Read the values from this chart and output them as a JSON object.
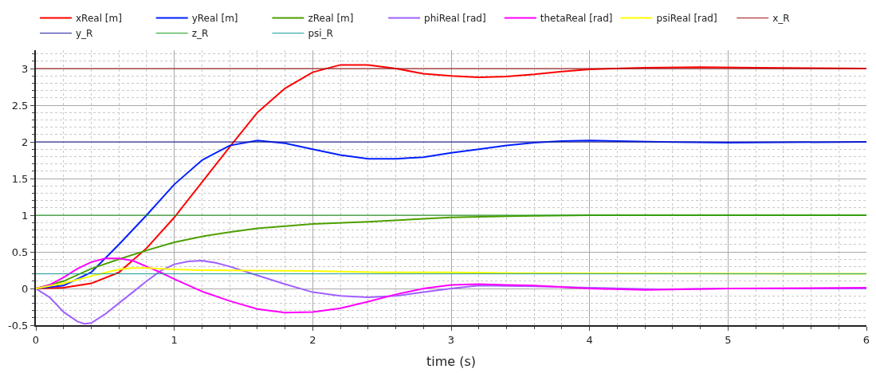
{
  "chart_data": {
    "type": "line",
    "xlabel": "time (s)",
    "xlim": [
      0,
      6
    ],
    "ylim": [
      -0.5,
      3.25
    ],
    "xticks": [
      0,
      1,
      2,
      3,
      4,
      5,
      6
    ],
    "yticks": [
      -0.5,
      0,
      0.5,
      1,
      1.5,
      2,
      2.5,
      3
    ],
    "grid": true,
    "legend": "top",
    "marker": "none",
    "line_style": "solid",
    "series": [
      {
        "name": "xReal [m]",
        "color": "#ff0000",
        "x": [
          0,
          0.2,
          0.4,
          0.6,
          0.8,
          1.0,
          1.2,
          1.4,
          1.6,
          1.8,
          2.0,
          2.2,
          2.4,
          2.6,
          2.8,
          3.0,
          3.2,
          3.4,
          3.6,
          3.8,
          4.0,
          4.4,
          4.8,
          5.2,
          6
        ],
        "values": [
          0,
          0.01,
          0.07,
          0.22,
          0.55,
          0.97,
          1.45,
          1.93,
          2.4,
          2.73,
          2.95,
          3.05,
          3.05,
          3.0,
          2.93,
          2.9,
          2.88,
          2.89,
          2.92,
          2.96,
          2.99,
          3.01,
          3.02,
          3.01,
          3.0
        ]
      },
      {
        "name": "yReal [m]",
        "color": "#0020ff",
        "x": [
          0,
          0.2,
          0.4,
          0.6,
          0.8,
          1.0,
          1.2,
          1.4,
          1.6,
          1.8,
          2.0,
          2.2,
          2.4,
          2.6,
          2.8,
          3.0,
          3.2,
          3.4,
          3.6,
          3.8,
          4.0,
          4.5,
          5,
          6
        ],
        "values": [
          0,
          0.04,
          0.22,
          0.6,
          1.0,
          1.42,
          1.75,
          1.95,
          2.02,
          1.98,
          1.9,
          1.82,
          1.77,
          1.77,
          1.79,
          1.85,
          1.9,
          1.95,
          1.99,
          2.01,
          2.02,
          2.0,
          1.99,
          2.0
        ]
      },
      {
        "name": "zReal [m]",
        "color": "#4ca000",
        "x": [
          0,
          0.2,
          0.4,
          0.6,
          0.8,
          1.0,
          1.2,
          1.4,
          1.6,
          1.8,
          2.0,
          2.4,
          2.8,
          3.0,
          3.5,
          4,
          6
        ],
        "values": [
          0,
          0.1,
          0.27,
          0.4,
          0.52,
          0.63,
          0.71,
          0.77,
          0.82,
          0.85,
          0.88,
          0.91,
          0.95,
          0.97,
          0.99,
          1.0,
          1.0
        ]
      },
      {
        "name": "phiReal [rad]",
        "color": "#a060ff",
        "x": [
          0,
          0.1,
          0.2,
          0.3,
          0.35,
          0.4,
          0.5,
          0.6,
          0.7,
          0.8,
          0.9,
          1.0,
          1.1,
          1.2,
          1.3,
          1.4,
          1.6,
          1.8,
          2.0,
          2.2,
          2.4,
          2.6,
          2.8,
          3.0,
          3.2,
          3.6,
          4.0,
          4.5,
          5,
          6
        ],
        "values": [
          0,
          -0.12,
          -0.32,
          -0.45,
          -0.48,
          -0.47,
          -0.35,
          -0.2,
          -0.05,
          0.1,
          0.24,
          0.33,
          0.37,
          0.38,
          0.35,
          0.3,
          0.18,
          0.06,
          -0.05,
          -0.1,
          -0.12,
          -0.1,
          -0.05,
          0.0,
          0.04,
          0.03,
          0.01,
          -0.01,
          0.0,
          0.0
        ]
      },
      {
        "name": "thetaReal [rad]",
        "color": "#ff00ff",
        "x": [
          0,
          0.1,
          0.2,
          0.3,
          0.4,
          0.5,
          0.6,
          0.7,
          0.8,
          0.9,
          1.0,
          1.2,
          1.4,
          1.6,
          1.8,
          2.0,
          2.2,
          2.4,
          2.6,
          2.8,
          3.0,
          3.2,
          3.4,
          3.6,
          4.0,
          4.4,
          5,
          6
        ],
        "values": [
          0,
          0.05,
          0.15,
          0.27,
          0.36,
          0.41,
          0.41,
          0.38,
          0.3,
          0.22,
          0.13,
          -0.04,
          -0.17,
          -0.28,
          -0.33,
          -0.32,
          -0.27,
          -0.18,
          -0.08,
          0.0,
          0.05,
          0.06,
          0.05,
          0.04,
          0.0,
          -0.02,
          0.0,
          0.01
        ]
      },
      {
        "name": "psiReal [rad]",
        "color": "#ffff00",
        "x": [
          0,
          0.2,
          0.4,
          0.6,
          0.7,
          0.8,
          1.0,
          1.2,
          2.0,
          2.5,
          3,
          3.5,
          6
        ],
        "values": [
          0,
          0.07,
          0.17,
          0.26,
          0.28,
          0.28,
          0.26,
          0.25,
          0.24,
          0.22,
          0.22,
          0.21,
          0.2
        ]
      },
      {
        "name": "x_R",
        "color": "#a01010",
        "x": [
          0,
          6
        ],
        "values": [
          3,
          3
        ]
      },
      {
        "name": "y_R",
        "color": "#1c1c9c",
        "x": [
          0,
          6
        ],
        "values": [
          2,
          2
        ]
      },
      {
        "name": "z_R",
        "color": "#1c9c1c",
        "x": [
          0,
          6
        ],
        "values": [
          1,
          1
        ]
      },
      {
        "name": "psi_R",
        "color": "#159c9c",
        "x": [
          0,
          6
        ],
        "values": [
          0.2,
          0.2
        ]
      }
    ]
  }
}
